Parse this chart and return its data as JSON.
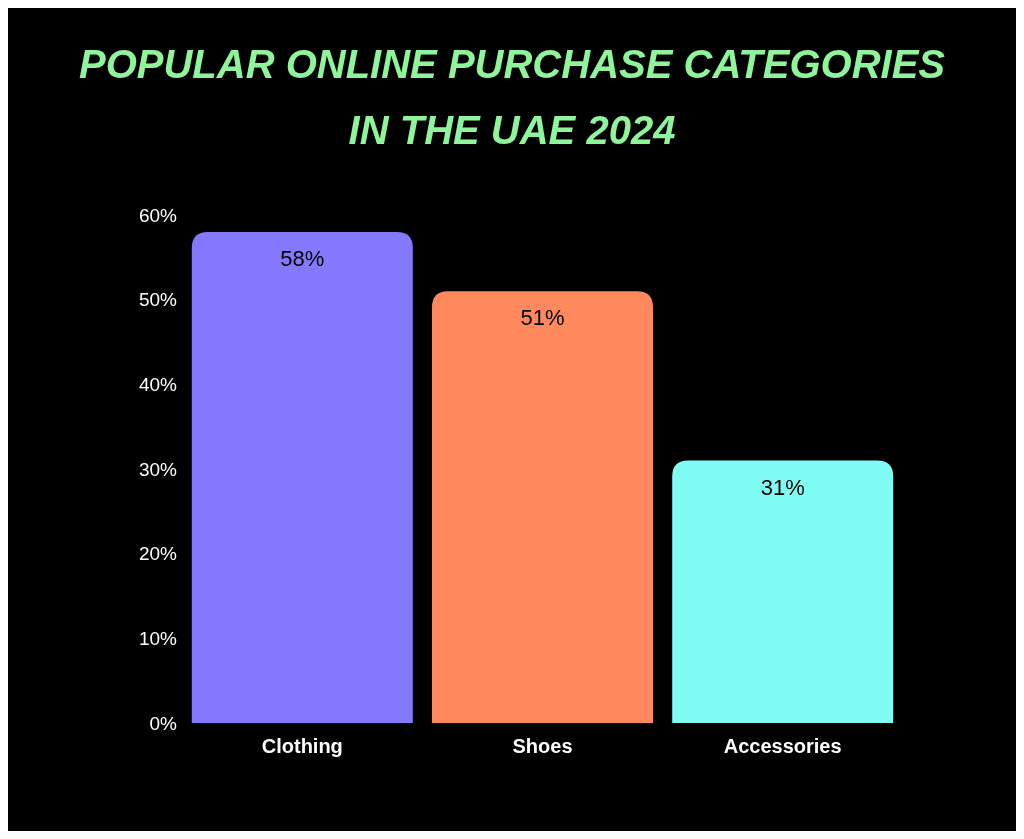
{
  "chart_data": {
    "type": "bar",
    "title": "POPULAR ONLINE PURCHASE CATEGORIES IN THE UAE 2024",
    "categories": [
      "Clothing",
      "Shoes",
      "Accessories"
    ],
    "values": [
      58,
      51,
      31
    ],
    "colors": [
      "#8479fc",
      "#ff885c",
      "#7ffdf4"
    ],
    "value_labels": [
      "58%",
      "51%",
      "31%"
    ],
    "ylim": [
      0,
      60
    ],
    "yticks": [
      {
        "value": 0,
        "label": "0%"
      },
      {
        "value": 10,
        "label": "10%"
      },
      {
        "value": 20,
        "label": "20%"
      },
      {
        "value": 30,
        "label": "30%"
      },
      {
        "value": 40,
        "label": "40%"
      },
      {
        "value": 50,
        "label": "50%"
      },
      {
        "value": 60,
        "label": "60%"
      }
    ]
  }
}
